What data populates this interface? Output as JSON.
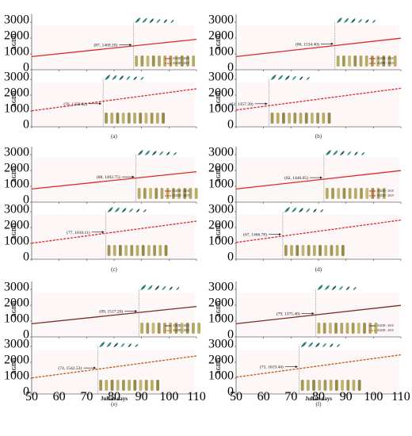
{
  "figure": {
    "xlabel": "Julian days",
    "xticks": [
      50,
      60,
      70,
      80,
      90,
      100,
      110
    ],
    "yticks": [
      0,
      1000,
      2000,
      3000
    ],
    "xlim": [
      50,
      110
    ],
    "ylim": [
      0,
      3500
    ]
  },
  "chart_data": [
    {
      "type": "line",
      "panel": "(a)",
      "position": "top",
      "ylabel": "AGDD",
      "x": [
        50,
        110
      ],
      "series": [
        {
          "name": "AGDD - 2018",
          "values": [
            830,
            1920
          ],
          "style": "solid",
          "color": "#e0262b"
        }
      ],
      "annotation": {
        "text": "(87, 1469.20)",
        "x": 87,
        "y": 1469.2
      },
      "legend": [
        "AGDD - 2018",
        "AGDD - 2019"
      ]
    },
    {
      "type": "line",
      "panel": "(a)",
      "position": "bottom",
      "ylabel": "AGDD",
      "x": [
        50,
        110
      ],
      "series": [
        {
          "name": "AGDD - 2019",
          "values": [
            1010,
            2400
          ],
          "style": "dashed",
          "color": "#e0262b"
        }
      ],
      "annotation": {
        "text": "(76, 1359.92)",
        "x": 76,
        "y": 1359.92
      }
    },
    {
      "type": "line",
      "panel": "(b)",
      "position": "top",
      "ylabel": "AGDD",
      "x": [
        50,
        110
      ],
      "series": [
        {
          "name": "AGDD - 2018",
          "values": [
            830,
            1990
          ],
          "style": "solid",
          "color": "#e0262b"
        }
      ],
      "annotation": {
        "text": "(86, 1534.40)",
        "x": 86,
        "y": 1534.4
      },
      "legend": [
        "AGDD - 2018",
        "AGDD - 2019"
      ]
    },
    {
      "type": "line",
      "panel": "(b)",
      "position": "bottom",
      "ylabel": "AGDD",
      "x": [
        50,
        110
      ],
      "series": [
        {
          "name": "AGDD - 2019",
          "values": [
            1060,
            2430
          ],
          "style": "dashed",
          "color": "#e0262b"
        }
      ],
      "annotation": {
        "text": "(62, 1357.39)",
        "x": 62,
        "y": 1357.39
      }
    },
    {
      "type": "line",
      "panel": "(c)",
      "position": "top",
      "ylabel": "AGDD",
      "x": [
        50,
        110
      ],
      "series": [
        {
          "name": "AGDD - 2018",
          "values": [
            830,
            1920
          ],
          "style": "solid",
          "color": "#e0262b"
        }
      ],
      "annotation": {
        "text": "(88, 1492.75)",
        "x": 88,
        "y": 1492.75
      },
      "legend": [
        "AGDD - 2018",
        "AGDD - 2019"
      ]
    },
    {
      "type": "line",
      "panel": "(c)",
      "position": "bottom",
      "ylabel": "AGDD",
      "x": [
        50,
        110
      ],
      "series": [
        {
          "name": "AGDD - 2019",
          "values": [
            1010,
            2400
          ],
          "style": "dashed",
          "color": "#e0262b"
        }
      ],
      "annotation": {
        "text": "(77, 1610.11)",
        "x": 77,
        "y": 1610.11
      }
    },
    {
      "type": "line",
      "panel": "(d)",
      "position": "top",
      "ylabel": "AGDD",
      "x": [
        50,
        110
      ],
      "series": [
        {
          "name": "AGDD - 2018",
          "values": [
            830,
            1990
          ],
          "style": "solid",
          "color": "#e0262b"
        }
      ],
      "annotation": {
        "text": "(82, 1446.05)",
        "x": 82,
        "y": 1446.05
      },
      "legend": [
        "AGDD - 2018",
        "AGDD - 2019"
      ]
    },
    {
      "type": "line",
      "panel": "(d)",
      "position": "bottom",
      "ylabel": "AGDD",
      "x": [
        50,
        110
      ],
      "series": [
        {
          "name": "AGDD - 2019",
          "values": [
            1060,
            2470
          ],
          "style": "dashed",
          "color": "#e0262b"
        }
      ],
      "annotation": {
        "text": "(67, 1466.78)",
        "x": 67,
        "y": 1466.78
      }
    },
    {
      "type": "line",
      "panel": "(e)",
      "position": "top",
      "ylabel": "AGDD",
      "x": [
        50,
        110
      ],
      "series": [
        {
          "name": "AGDD - 2018",
          "values": [
            830,
            1920
          ],
          "style": "solid",
          "color": "#7a2a1f"
        }
      ],
      "annotation": {
        "text": "(89, 1517.20)",
        "x": 89,
        "y": 1517.2
      },
      "legend": [
        "AGDD - 2018",
        "AGDD - 2019"
      ]
    },
    {
      "type": "line",
      "panel": "(e)",
      "position": "bottom",
      "ylabel": "AGDD",
      "x": [
        50,
        110
      ],
      "series": [
        {
          "name": "AGDD - 2019",
          "values": [
            1010,
            2400
          ],
          "style": "dashed",
          "color": "#c05a17"
        }
      ],
      "annotation": {
        "text": "(74, 1542.53)",
        "x": 74,
        "y": 1542.53
      }
    },
    {
      "type": "line",
      "panel": "(f)",
      "position": "top",
      "ylabel": "AGDD",
      "x": [
        50,
        110
      ],
      "series": [
        {
          "name": "AGDD - 2018",
          "values": [
            830,
            1990
          ],
          "style": "solid",
          "color": "#7a2a1f"
        }
      ],
      "annotation": {
        "text": "(79, 1375.40)",
        "x": 79,
        "y": 1375.4
      },
      "legend": [
        "AGDD - 2018",
        "AGDD - 2019"
      ]
    },
    {
      "type": "line",
      "panel": "(f)",
      "position": "bottom",
      "ylabel": "AGDD",
      "x": [
        50,
        110
      ],
      "series": [
        {
          "name": "AGDD - 2019",
          "values": [
            1060,
            2470
          ],
          "style": "dashed",
          "color": "#c05a17"
        }
      ],
      "annotation": {
        "text": "(73, 1619.44)",
        "x": 73,
        "y": 1619.44
      }
    }
  ]
}
